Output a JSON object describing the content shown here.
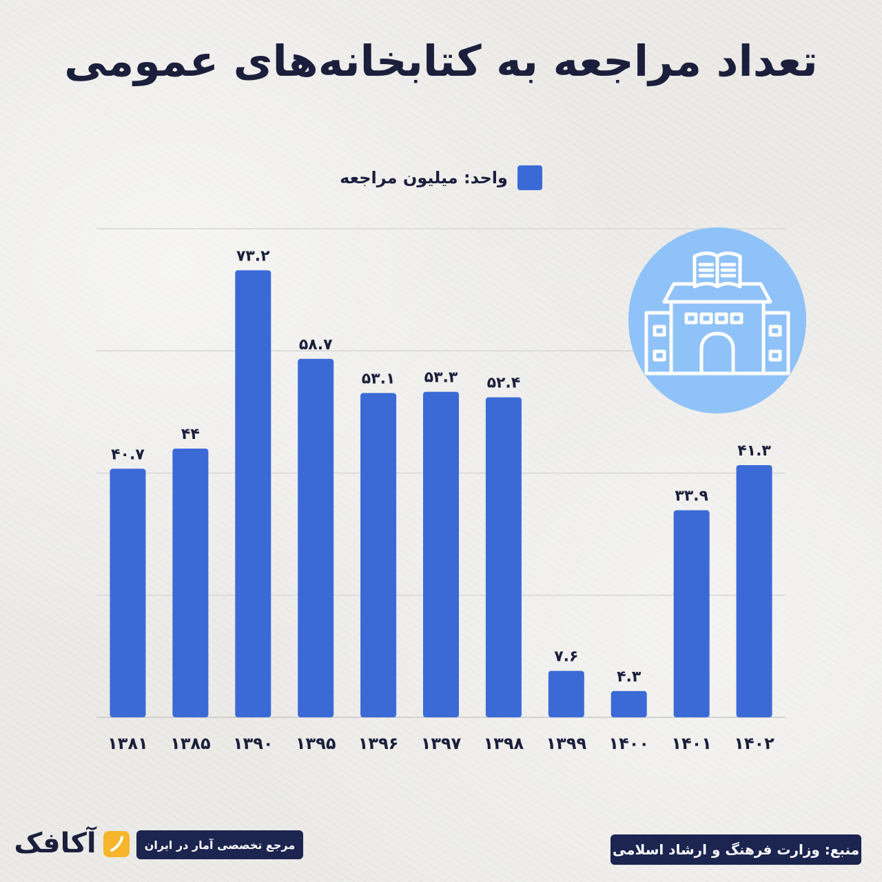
{
  "header": {
    "title": "تعداد مراجعه به کتابخانه‌های عمومی"
  },
  "legend": {
    "label": "واحد: میلیون مراجعه",
    "swatch_color": "#3b6ad6"
  },
  "chart_data": {
    "type": "bar",
    "categories": [
      "۱۳۸۱",
      "۱۳۸۵",
      "۱۳۹۰",
      "۱۳۹۵",
      "۱۳۹۶",
      "۱۳۹۷",
      "۱۳۹۸",
      "۱۳۹۹",
      "۱۴۰۰",
      "۱۴۰۱",
      "۱۴۰۲"
    ],
    "values": [
      40.7,
      44,
      73.2,
      58.7,
      53.1,
      53.3,
      52.4,
      7.6,
      4.3,
      33.9,
      41.3
    ],
    "value_labels": [
      "۴۰.۷",
      "۴۴",
      "۷۳.۲",
      "۵۸.۷",
      "۵۳.۱",
      "۵۳.۳",
      "۵۲.۴",
      "۷.۶",
      "۴.۳",
      "۳۳.۹",
      "۴۱.۳"
    ],
    "ylim": [
      0,
      80
    ],
    "grid": true,
    "bar_color": "#3b6ad6"
  },
  "icons": {
    "badge": "library-building-icon",
    "brand": "akamfek-logo"
  },
  "footer": {
    "source": "منبع: وزارت فرهنگ و ارشاد اسلامی",
    "tagline": "مرجع تخصصی آمار در ایران",
    "brand_name": "آکافک",
    "brand_color": "#f6b52a"
  }
}
